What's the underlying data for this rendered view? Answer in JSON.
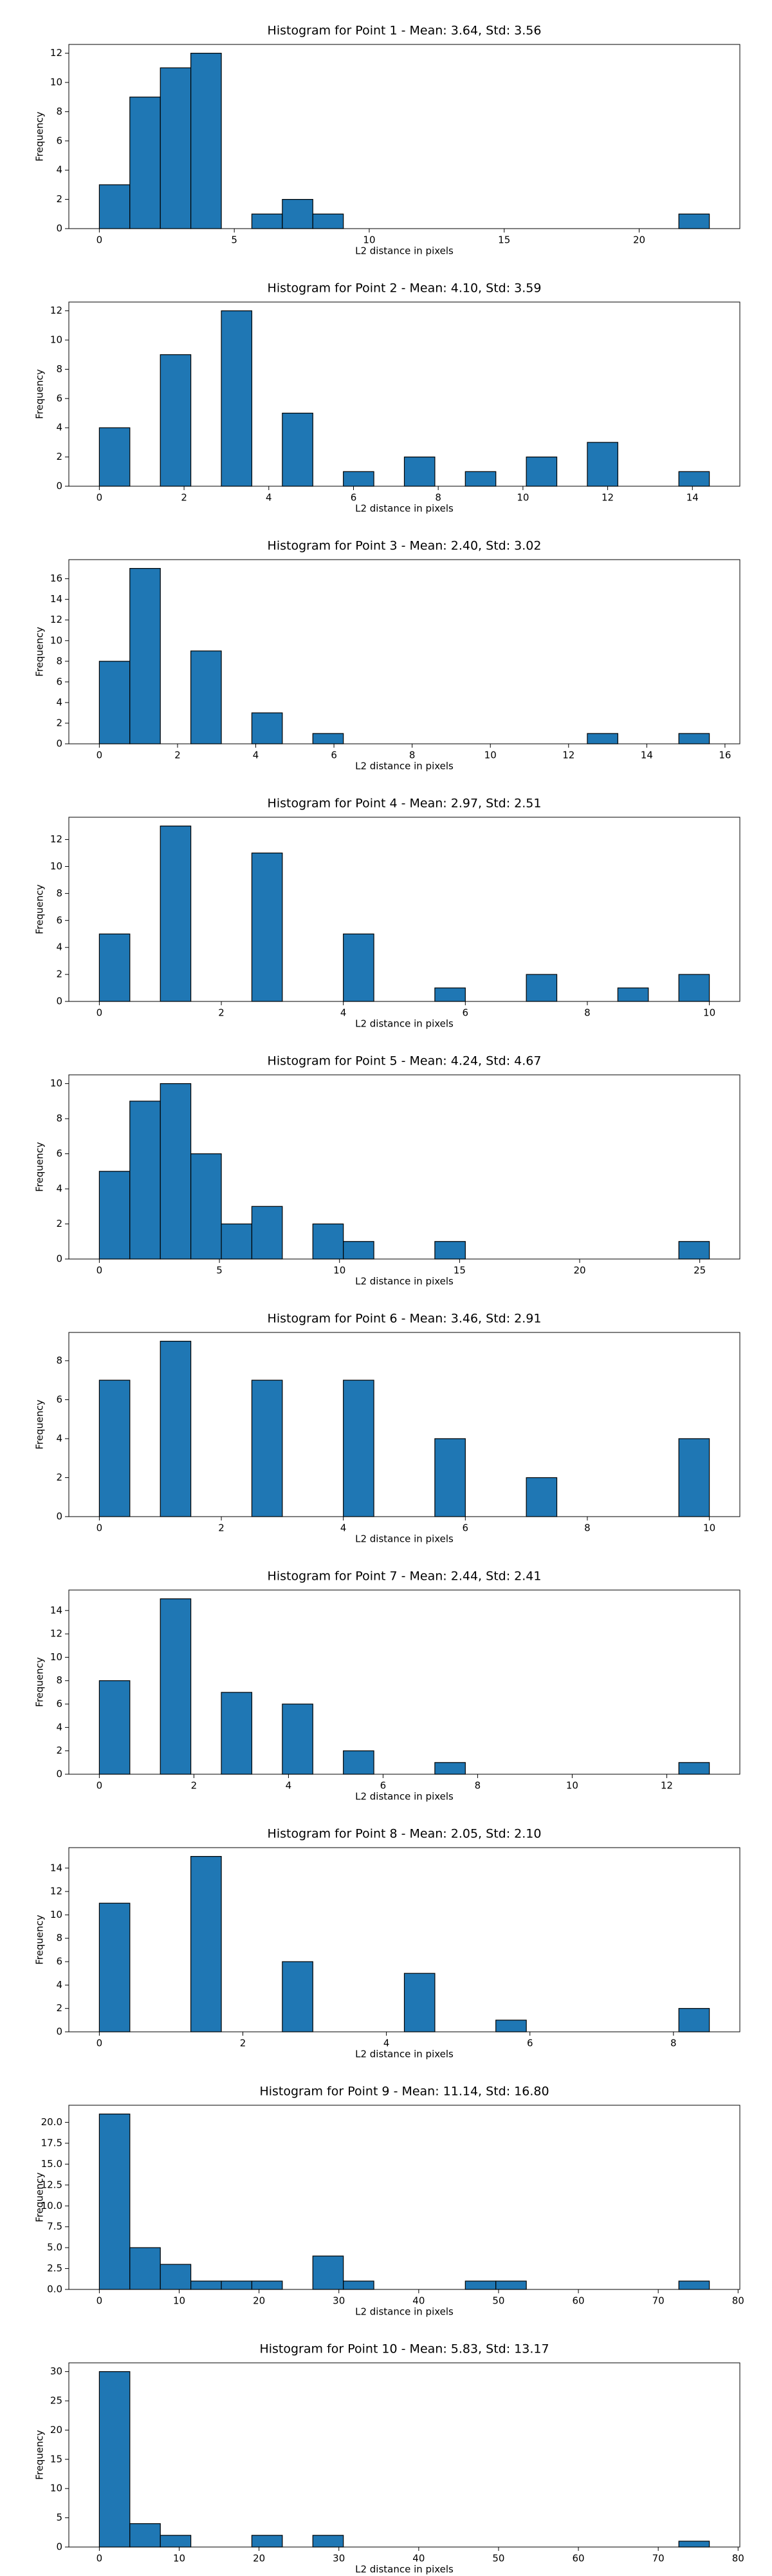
{
  "chart_data": [
    {
      "type": "histogram",
      "title": "Histogram for Point 1 - Mean: 3.64, Std: 3.56",
      "xlabel": "L2 distance in pixels",
      "ylabel": "Frequency",
      "color": "#1f77b4",
      "edgecolor": "#000000",
      "bins": [
        0,
        1.13,
        2.26,
        3.39,
        4.52,
        5.65,
        6.78,
        7.91,
        9.04,
        10.17,
        11.3,
        12.43,
        13.56,
        14.69,
        15.82,
        16.95,
        18.08,
        19.21,
        20.34,
        21.47,
        22.6
      ],
      "values": [
        3,
        9,
        11,
        12,
        0,
        1,
        2,
        1,
        0,
        0,
        0,
        0,
        0,
        0,
        0,
        0,
        0,
        0,
        0,
        1
      ],
      "xlim": [
        -1.13,
        23.73
      ],
      "xticks": [
        0,
        5,
        10,
        15,
        20
      ],
      "ylim": [
        0,
        12.6
      ],
      "yticks": [
        0,
        2,
        4,
        6,
        8,
        10,
        12
      ]
    },
    {
      "type": "histogram",
      "title": "Histogram for Point 2 - Mean: 4.10, Std: 3.59",
      "xlabel": "L2 distance in pixels",
      "ylabel": "Frequency",
      "color": "#1f77b4",
      "edgecolor": "#000000",
      "bins": [
        0,
        0.72,
        1.44,
        2.16,
        2.88,
        3.6,
        4.32,
        5.04,
        5.76,
        6.48,
        7.2,
        7.92,
        8.64,
        9.36,
        10.08,
        10.8,
        11.52,
        12.24,
        12.96,
        13.68,
        14.4
      ],
      "values": [
        4,
        0,
        9,
        0,
        12,
        0,
        5,
        0,
        1,
        0,
        2,
        0,
        1,
        0,
        2,
        0,
        3,
        0,
        0,
        1
      ],
      "xlim": [
        -0.72,
        15.12
      ],
      "xticks": [
        0,
        2,
        4,
        6,
        8,
        10,
        12,
        14
      ],
      "ylim": [
        0,
        12.6
      ],
      "yticks": [
        0,
        2,
        4,
        6,
        8,
        10,
        12
      ]
    },
    {
      "type": "histogram",
      "title": "Histogram for Point 3 - Mean: 2.40, Std: 3.02",
      "xlabel": "L2 distance in pixels",
      "ylabel": "Frequency",
      "color": "#1f77b4",
      "edgecolor": "#000000",
      "bins": [
        0,
        0.78,
        1.56,
        2.34,
        3.12,
        3.9,
        4.68,
        5.46,
        6.24,
        7.02,
        7.8,
        8.58,
        9.36,
        10.14,
        10.92,
        11.7,
        12.48,
        13.26,
        14.04,
        14.82,
        15.6
      ],
      "values": [
        8,
        17,
        0,
        9,
        0,
        3,
        0,
        1,
        0,
        0,
        0,
        0,
        0,
        0,
        0,
        0,
        1,
        0,
        0,
        1
      ],
      "xlim": [
        -0.78,
        16.38
      ],
      "xticks": [
        0,
        2,
        4,
        6,
        8,
        10,
        12,
        14,
        16
      ],
      "ylim": [
        0,
        17.85
      ],
      "yticks": [
        0,
        2,
        4,
        6,
        8,
        10,
        12,
        14,
        16
      ]
    },
    {
      "type": "histogram",
      "title": "Histogram for Point 4 - Mean: 2.97, Std: 2.51",
      "xlabel": "L2 distance in pixels",
      "ylabel": "Frequency",
      "color": "#1f77b4",
      "edgecolor": "#000000",
      "bins": [
        0,
        0.5,
        1,
        1.5,
        2,
        2.5,
        3,
        3.5,
        4,
        4.5,
        5,
        5.5,
        6,
        6.5,
        7,
        7.5,
        8,
        8.5,
        9,
        9.5,
        10
      ],
      "values": [
        5,
        0,
        13,
        0,
        0,
        11,
        0,
        0,
        5,
        0,
        0,
        1,
        0,
        0,
        2,
        0,
        0,
        1,
        0,
        2
      ],
      "xlim": [
        -0.5,
        10.5
      ],
      "xticks": [
        0,
        2,
        4,
        6,
        8,
        10
      ],
      "ylim": [
        0,
        13.65
      ],
      "yticks": [
        0,
        2,
        4,
        6,
        8,
        10,
        12
      ]
    },
    {
      "type": "histogram",
      "title": "Histogram for Point 5 - Mean: 4.24, Std: 4.67",
      "xlabel": "L2 distance in pixels",
      "ylabel": "Frequency",
      "color": "#1f77b4",
      "edgecolor": "#000000",
      "bins": [
        0,
        1.27,
        2.54,
        3.81,
        5.08,
        6.35,
        7.62,
        8.89,
        10.16,
        11.43,
        12.7,
        13.97,
        15.24,
        16.51,
        17.78,
        19.05,
        20.32,
        21.59,
        22.86,
        24.13,
        25.4
      ],
      "values": [
        5,
        9,
        10,
        6,
        2,
        3,
        0,
        2,
        1,
        0,
        0,
        1,
        0,
        0,
        0,
        0,
        0,
        0,
        0,
        1
      ],
      "xlim": [
        -1.27,
        26.67
      ],
      "xticks": [
        0,
        5,
        10,
        15,
        20,
        25
      ],
      "ylim": [
        0,
        10.5
      ],
      "yticks": [
        0,
        2,
        4,
        6,
        8,
        10
      ]
    },
    {
      "type": "histogram",
      "title": "Histogram for Point 6 - Mean: 3.46, Std: 2.91",
      "xlabel": "L2 distance in pixels",
      "ylabel": "Frequency",
      "color": "#1f77b4",
      "edgecolor": "#000000",
      "bins": [
        0,
        0.5,
        1,
        1.5,
        2,
        2.5,
        3,
        3.5,
        4,
        4.5,
        5,
        5.5,
        6,
        6.5,
        7,
        7.5,
        8,
        8.5,
        9,
        9.5,
        10
      ],
      "values": [
        7,
        0,
        9,
        0,
        0,
        7,
        0,
        0,
        7,
        0,
        0,
        4,
        0,
        0,
        2,
        0,
        0,
        0,
        0,
        4
      ],
      "xlim": [
        -0.5,
        10.5
      ],
      "xticks": [
        0,
        2,
        4,
        6,
        8,
        10
      ],
      "ylim": [
        0,
        9.45
      ],
      "yticks": [
        0,
        2,
        4,
        6,
        8
      ]
    },
    {
      "type": "histogram",
      "title": "Histogram for Point 7 - Mean: 2.44, Std: 2.41",
      "xlabel": "L2 distance in pixels",
      "ylabel": "Frequency",
      "color": "#1f77b4",
      "edgecolor": "#000000",
      "bins": [
        0,
        0.645,
        1.29,
        1.935,
        2.58,
        3.225,
        3.87,
        4.515,
        5.16,
        5.805,
        6.45,
        7.095,
        7.74,
        8.385,
        9.03,
        9.675,
        10.32,
        10.965,
        11.61,
        12.255,
        12.9
      ],
      "values": [
        8,
        0,
        15,
        0,
        7,
        0,
        6,
        0,
        2,
        0,
        0,
        1,
        0,
        0,
        0,
        0,
        0,
        0,
        0,
        1
      ],
      "xlim": [
        -0.645,
        13.545
      ],
      "xticks": [
        0,
        2,
        4,
        6,
        8,
        10,
        12
      ],
      "ylim": [
        0,
        15.75
      ],
      "yticks": [
        0,
        2,
        4,
        6,
        8,
        10,
        12,
        14
      ]
    },
    {
      "type": "histogram",
      "title": "Histogram for Point 8 - Mean: 2.05, Std: 2.10",
      "xlabel": "L2 distance in pixels",
      "ylabel": "Frequency",
      "color": "#1f77b4",
      "edgecolor": "#000000",
      "bins": [
        0,
        0.425,
        0.85,
        1.275,
        1.7,
        2.125,
        2.55,
        2.975,
        3.4,
        3.825,
        4.25,
        4.675,
        5.1,
        5.525,
        5.95,
        6.375,
        6.8,
        7.225,
        7.65,
        8.075,
        8.5
      ],
      "values": [
        11,
        0,
        0,
        15,
        0,
        0,
        6,
        0,
        0,
        0,
        5,
        0,
        0,
        1,
        0,
        0,
        0,
        0,
        0,
        2
      ],
      "xlim": [
        -0.425,
        8.925
      ],
      "xticks": [
        0,
        2,
        4,
        6,
        8
      ],
      "ylim": [
        0,
        15.75
      ],
      "yticks": [
        0,
        2,
        4,
        6,
        8,
        10,
        12,
        14
      ]
    },
    {
      "type": "histogram",
      "title": "Histogram for Point 9 - Mean: 11.14, Std: 16.80",
      "xlabel": "L2 distance in pixels",
      "ylabel": "Frequency",
      "color": "#1f77b4",
      "edgecolor": "#000000",
      "bins": [
        0,
        3.82,
        7.64,
        11.46,
        15.28,
        19.1,
        22.92,
        26.74,
        30.56,
        34.38,
        38.2,
        42.02,
        45.84,
        49.66,
        53.48,
        57.3,
        61.12,
        64.94,
        68.76,
        72.58,
        76.4
      ],
      "values": [
        21,
        5,
        3,
        1,
        1,
        1,
        0,
        4,
        1,
        0,
        0,
        0,
        1,
        1,
        0,
        0,
        0,
        0,
        0,
        1
      ],
      "xlim": [
        -3.82,
        80.22
      ],
      "xticks": [
        0,
        10,
        20,
        30,
        40,
        50,
        60,
        70,
        80
      ],
      "ylim": [
        0,
        22.05
      ],
      "yticks": [
        {
          "value": 0,
          "label": "0.0"
        },
        {
          "value": 2.5,
          "label": "2.5"
        },
        {
          "value": 5,
          "label": "5.0"
        },
        {
          "value": 7.5,
          "label": "7.5"
        },
        {
          "value": 10,
          "label": "10.0"
        },
        {
          "value": 12.5,
          "label": "12.5"
        },
        {
          "value": 15,
          "label": "15.0"
        },
        {
          "value": 17.5,
          "label": "17.5"
        },
        {
          "value": 20,
          "label": "20.0"
        }
      ]
    },
    {
      "type": "histogram",
      "title": "Histogram for Point 10 - Mean: 5.83, Std: 13.17",
      "xlabel": "L2 distance in pixels",
      "ylabel": "Frequency",
      "color": "#1f77b4",
      "edgecolor": "#000000",
      "bins": [
        0,
        3.82,
        7.64,
        11.46,
        15.28,
        19.1,
        22.92,
        26.74,
        30.56,
        34.38,
        38.2,
        42.02,
        45.84,
        49.66,
        53.48,
        57.3,
        61.12,
        64.94,
        68.76,
        72.58,
        76.4
      ],
      "values": [
        30,
        4,
        2,
        0,
        0,
        2,
        0,
        2,
        0,
        0,
        0,
        0,
        0,
        0,
        0,
        0,
        0,
        0,
        0,
        1
      ],
      "xlim": [
        -3.82,
        80.22
      ],
      "xticks": [
        0,
        10,
        20,
        30,
        40,
        50,
        60,
        70,
        80
      ],
      "ylim": [
        0,
        31.5
      ],
      "yticks": [
        0,
        5,
        10,
        15,
        20,
        25,
        30
      ]
    }
  ]
}
